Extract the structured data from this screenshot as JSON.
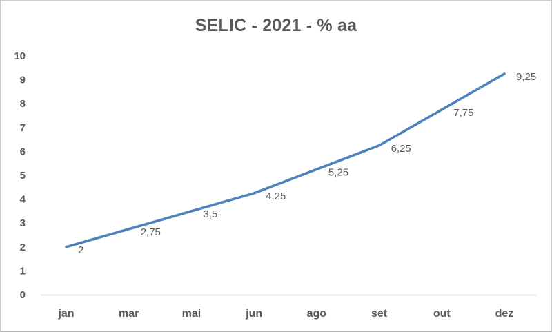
{
  "chart_data": {
    "type": "line",
    "title": "SELIC - 2021 - % aa",
    "categories": [
      "jan",
      "mar",
      "mai",
      "jun",
      "ago",
      "set",
      "out",
      "dez"
    ],
    "values": [
      2,
      2.75,
      3.5,
      4.25,
      5.25,
      6.25,
      7.75,
      9.25
    ],
    "point_labels": [
      "2",
      "2,75",
      "3,5",
      "4,25",
      "5,25",
      "6,25",
      "7,75",
      "9,25"
    ],
    "yticks": [
      0,
      1,
      2,
      3,
      4,
      5,
      6,
      7,
      8,
      9,
      10
    ],
    "ylim": [
      0,
      10
    ],
    "xlabel": "",
    "ylabel": "",
    "grid": false,
    "legend_position": "none",
    "line_color": "#4F81BD",
    "text_color": "#595959",
    "axis_line_color": "#d9d9d9"
  }
}
